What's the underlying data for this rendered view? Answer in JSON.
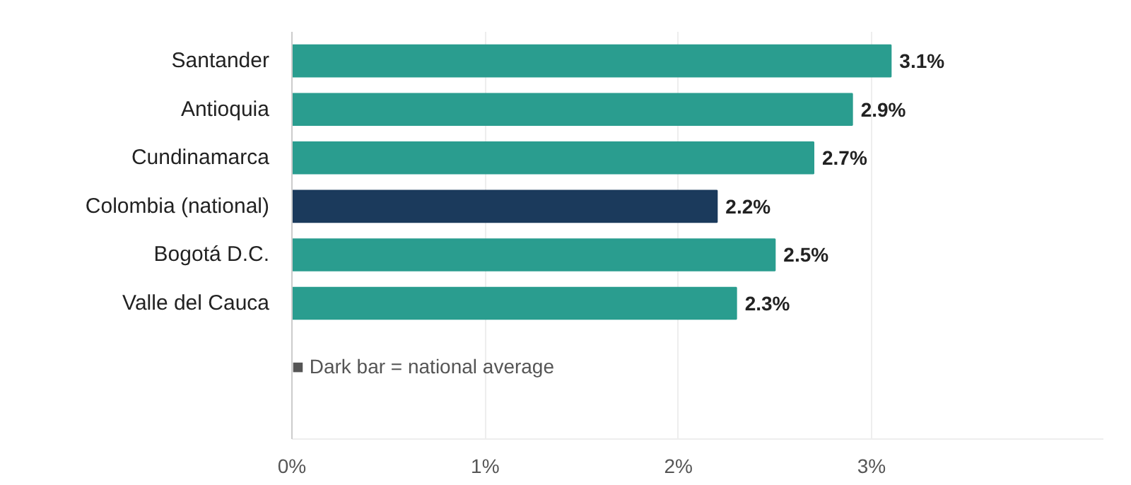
{
  "chart_data": {
    "type": "bar",
    "orientation": "horizontal",
    "categories": [
      "Santander",
      "Antioquia",
      "Cundinamarca",
      "Colombia (national)",
      "Bogotá D.C.",
      "Valle del Cauca"
    ],
    "values": [
      3.1,
      2.9,
      2.7,
      2.2,
      2.5,
      2.3
    ],
    "colors": [
      "#2a9d8f",
      "#2a9d8f",
      "#2a9d8f",
      "#1b3a5c",
      "#2a9d8f",
      "#2a9d8f"
    ],
    "value_labels": [
      "3.1%",
      "2.9%",
      "2.7%",
      "2.2%",
      "2.5%",
      "2.3%"
    ],
    "xlim": [
      0,
      4.2
    ],
    "xticks": [
      {
        "value": 0,
        "label": "0%"
      },
      {
        "value": 1,
        "label": "1%"
      },
      {
        "value": 2,
        "label": "2%"
      },
      {
        "value": 3,
        "label": "3%"
      }
    ],
    "grid": "x",
    "annotations": [
      "■ Dark bar = national average"
    ]
  }
}
